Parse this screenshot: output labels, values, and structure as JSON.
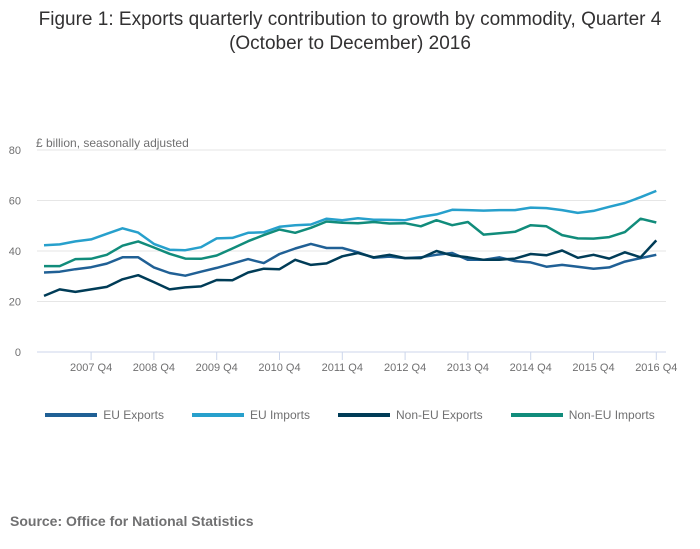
{
  "title_lines": [
    "Figure 1: Exports quarterly contribution to growth by commodity, Quarter 4",
    "(October to December) 2016"
  ],
  "source": "Source: Office for National Statistics",
  "chart_data": {
    "type": "line",
    "title": "Figure 1: Exports quarterly contribution to growth by commodity, Quarter 4 (October to December) 2016",
    "xlabel": "",
    "ylabel": "£ billion, seasonally adjusted",
    "ylim": [
      0,
      80
    ],
    "yticks": [
      0,
      20,
      40,
      60,
      80
    ],
    "grid": true,
    "legend_position": "bottom",
    "x": [
      "2007 Q1",
      "2007 Q2",
      "2007 Q3",
      "2007 Q4",
      "2008 Q1",
      "2008 Q2",
      "2008 Q3",
      "2008 Q4",
      "2009 Q1",
      "2009 Q2",
      "2009 Q3",
      "2009 Q4",
      "2010 Q1",
      "2010 Q2",
      "2010 Q3",
      "2010 Q4",
      "2011 Q1",
      "2011 Q2",
      "2011 Q3",
      "2011 Q4",
      "2012 Q1",
      "2012 Q2",
      "2012 Q3",
      "2012 Q4",
      "2013 Q1",
      "2013 Q2",
      "2013 Q3",
      "2013 Q4",
      "2014 Q1",
      "2014 Q2",
      "2014 Q3",
      "2014 Q4",
      "2015 Q1",
      "2015 Q2",
      "2015 Q3",
      "2015 Q4",
      "2016 Q1",
      "2016 Q2",
      "2016 Q3",
      "2016 Q4"
    ],
    "xtick_labels": [
      "2007 Q4",
      "2008 Q4",
      "2009 Q4",
      "2010 Q4",
      "2011 Q4",
      "2012 Q4",
      "2013 Q4",
      "2014 Q4",
      "2015 Q4",
      "2016 Q4"
    ],
    "series": [
      {
        "name": "EU Exports",
        "color": "#206095",
        "values": [
          31.5,
          31.8,
          32.8,
          33.6,
          35.0,
          37.5,
          37.5,
          33.5,
          31.3,
          30.2,
          31.8,
          33.3,
          35.0,
          36.8,
          35.2,
          38.8,
          41.0,
          42.8,
          41.2,
          41.2,
          39.5,
          37.3,
          37.8,
          37.2,
          37.5,
          38.5,
          39.2,
          36.5,
          36.5,
          37.5,
          36.0,
          35.5,
          33.8,
          34.5,
          33.8,
          33.0,
          33.5,
          35.8,
          37.2,
          38.5
        ]
      },
      {
        "name": "EU Imports",
        "color": "#27a0cc",
        "values": [
          42.3,
          42.6,
          43.8,
          44.6,
          46.8,
          49.0,
          47.3,
          42.8,
          40.5,
          40.3,
          41.5,
          45.0,
          45.2,
          47.2,
          47.4,
          49.6,
          50.2,
          50.5,
          52.8,
          52.2,
          53.0,
          52.4,
          52.3,
          52.2,
          53.5,
          54.5,
          56.3,
          56.2,
          56.0,
          56.2,
          56.2,
          57.2,
          57.0,
          56.2,
          55.1,
          55.9,
          57.5,
          59.0,
          61.3,
          63.8
        ]
      },
      {
        "name": "Non-EU Exports",
        "color": "#003c57",
        "values": [
          22.2,
          24.8,
          23.8,
          24.8,
          25.8,
          28.8,
          30.4,
          27.7,
          24.8,
          25.6,
          26.0,
          28.5,
          28.4,
          31.5,
          33.0,
          32.8,
          36.5,
          34.5,
          35.1,
          37.9,
          39.2,
          37.5,
          38.5,
          37.2,
          37.2,
          40.0,
          38.2,
          37.5,
          36.5,
          36.5,
          37.0,
          38.8,
          38.3,
          40.2,
          37.3,
          38.5,
          37.0,
          39.5,
          37.5,
          44.2
        ]
      },
      {
        "name": "Non-EU Imports",
        "color": "#118c7b",
        "values": [
          34.0,
          34.0,
          36.8,
          36.9,
          38.5,
          42.1,
          43.8,
          41.4,
          38.9,
          37.0,
          36.9,
          38.2,
          41.0,
          43.9,
          46.3,
          48.5,
          47.2,
          49.2,
          51.7,
          51.2,
          51.0,
          51.5,
          50.9,
          51.0,
          49.8,
          52.2,
          50.2,
          51.5,
          46.5,
          47.0,
          47.6,
          50.2,
          49.8,
          46.3,
          45.0,
          44.9,
          45.5,
          47.5,
          52.8,
          51.3
        ]
      }
    ]
  }
}
